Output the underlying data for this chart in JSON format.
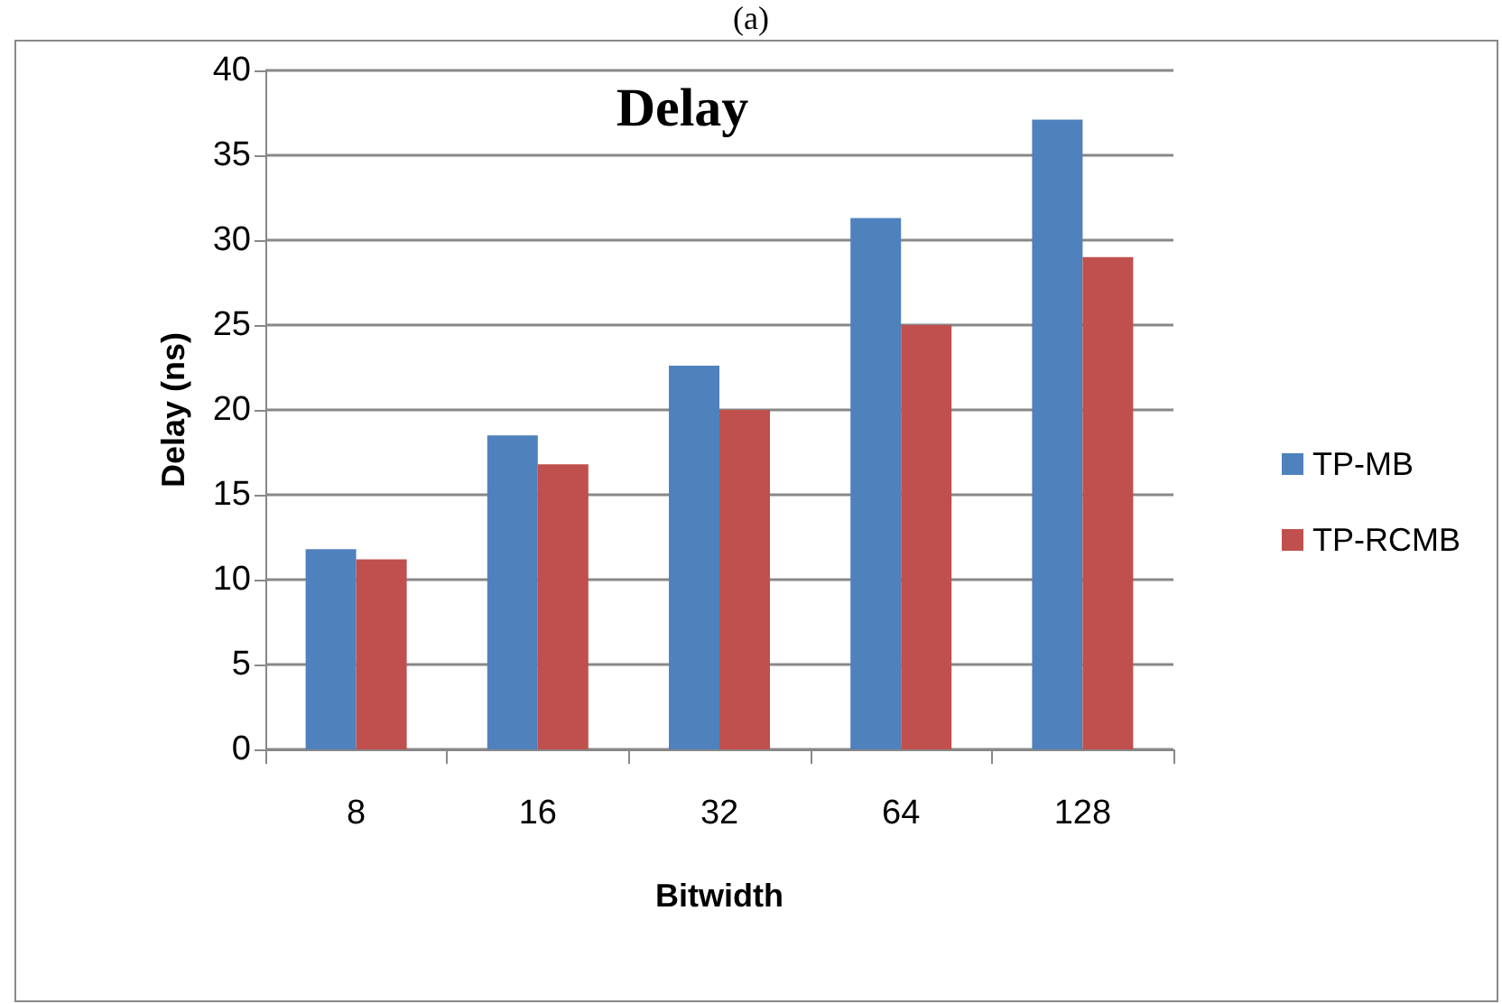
{
  "chart_data": {
    "type": "bar",
    "title": "Delay",
    "xlabel": "Bitwidth",
    "ylabel": "Delay (ns)",
    "annotations": [
      "(a)"
    ],
    "categories": [
      "8",
      "16",
      "32",
      "64",
      "128"
    ],
    "series": [
      {
        "name": "TP-MB",
        "color": "#4f81bd",
        "values": [
          11.8,
          18.5,
          22.6,
          31.3,
          37.1
        ]
      },
      {
        "name": "TP-RCMB",
        "color": "#c0504d",
        "values": [
          11.2,
          16.8,
          20.0,
          25.0,
          29.0
        ]
      }
    ],
    "ylim": [
      0,
      40
    ],
    "yticks": [
      0,
      5,
      10,
      15,
      20,
      25,
      30,
      35,
      40
    ],
    "grid": "y",
    "legend": "right"
  }
}
